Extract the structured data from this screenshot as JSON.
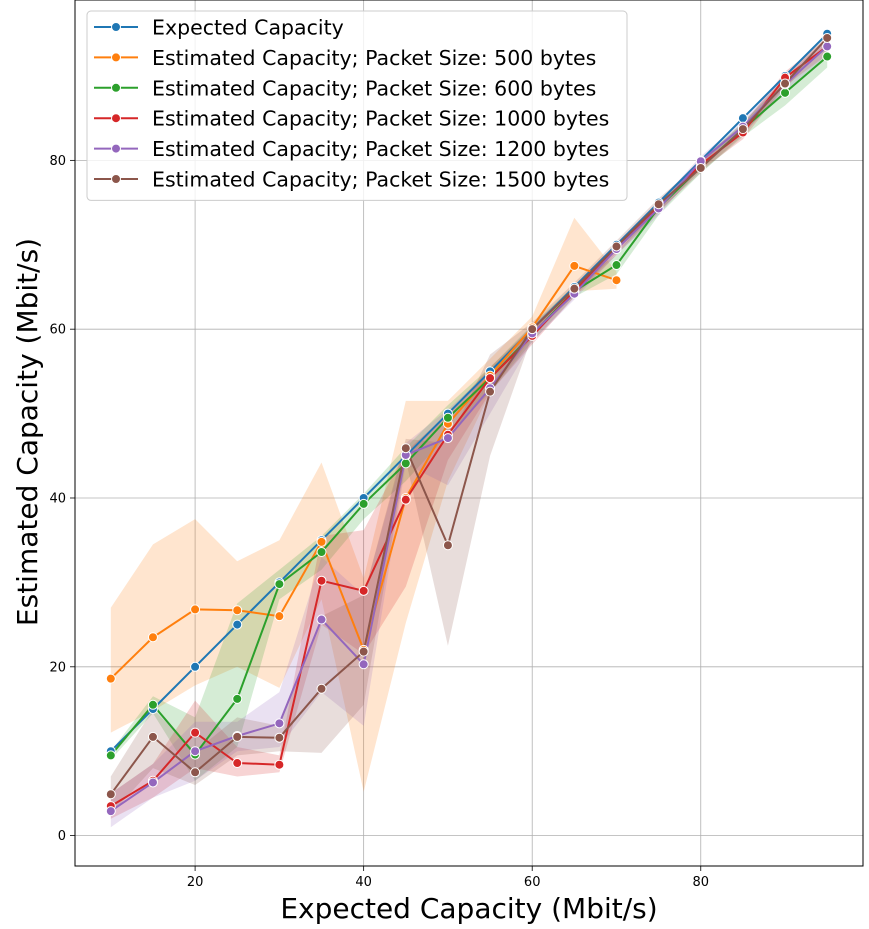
{
  "chart_data": {
    "type": "line",
    "xlabel": "Expected Capacity (Mbit/s)",
    "ylabel": "Estimated Capacity (Mbit/s)",
    "xlim": [
      5.75,
      99.25
    ],
    "ylim": [
      -3.6,
      99.0
    ],
    "xticks": [
      20,
      40,
      60,
      80
    ],
    "yticks": [
      0,
      20,
      40,
      60,
      80
    ],
    "grid": true,
    "legend_position": "upper-left",
    "series": [
      {
        "name": "Expected Capacity",
        "color": "#1f77b4",
        "x": [
          10,
          15,
          20,
          25,
          30,
          35,
          40,
          45,
          50,
          55,
          60,
          65,
          70,
          75,
          80,
          85,
          90,
          95
        ],
        "y": [
          10,
          15,
          20,
          25,
          30,
          35,
          40,
          45,
          50,
          55,
          60,
          65,
          70,
          75,
          80,
          85,
          90,
          95
        ]
      },
      {
        "name": "Estimated Capacity; Packet Size: 500 bytes",
        "color": "#ff7f0e",
        "x": [
          10,
          15,
          20,
          25,
          30,
          35,
          40,
          45,
          50,
          55,
          60,
          65,
          70
        ],
        "y": [
          18.6,
          23.5,
          26.8,
          26.7,
          26.0,
          34.8,
          22.0,
          40.0,
          48.8,
          54.5,
          60.2,
          67.5,
          65.8
        ],
        "band_low": [
          12.2,
          14.8,
          17.8,
          20.0,
          17.5,
          28.0,
          5.2,
          25.2,
          42.0,
          52.5,
          59.0,
          64.5,
          64.8
        ],
        "band_high": [
          27.0,
          34.5,
          37.5,
          32.5,
          35.0,
          44.2,
          30.5,
          51.5,
          51.5,
          56.5,
          61.5,
          73.2,
          66.8
        ]
      },
      {
        "name": "Estimated Capacity; Packet Size: 600 bytes",
        "color": "#2ca02c",
        "x": [
          10,
          15,
          20,
          25,
          30,
          35,
          40,
          45,
          50,
          55,
          60,
          65,
          70,
          75,
          80,
          85,
          90,
          95
        ],
        "y": [
          9.5,
          15.5,
          9.6,
          16.2,
          29.8,
          33.6,
          39.3,
          44.1,
          49.5,
          54.2,
          59.4,
          64.5,
          67.6,
          74.4,
          79.2,
          83.7,
          88.0,
          92.3
        ],
        "band_low": [
          9.0,
          14.5,
          6.5,
          10.5,
          28.0,
          31.5,
          37.5,
          42.0,
          47.5,
          52.5,
          58.5,
          63.8,
          66.5,
          73.5,
          78.5,
          82.8,
          86.5,
          91.0
        ],
        "band_high": [
          10.0,
          16.5,
          14.0,
          27.5,
          31.5,
          35.5,
          40.5,
          46.0,
          51.0,
          55.5,
          60.5,
          65.2,
          68.8,
          75.2,
          80.0,
          84.5,
          89.5,
          93.5
        ]
      },
      {
        "name": "Estimated Capacity; Packet Size: 1000 bytes",
        "color": "#d62728",
        "x": [
          10,
          15,
          20,
          25,
          30,
          35,
          40,
          45,
          50,
          55,
          60,
          65,
          70,
          75,
          80,
          85,
          90,
          95
        ],
        "y": [
          3.5,
          6.5,
          12.2,
          8.6,
          8.4,
          30.2,
          29.0,
          39.8,
          47.5,
          54.2,
          59.2,
          64.5,
          69.5,
          74.5,
          79.5,
          83.3,
          89.8,
          93.5
        ],
        "band_low": [
          2.0,
          4.5,
          8.0,
          7.0,
          7.5,
          25.0,
          21.5,
          29.5,
          44.5,
          52.5,
          58.2,
          63.8,
          68.8,
          73.8,
          78.8,
          82.5,
          88.8,
          92.5
        ],
        "band_high": [
          5.0,
          8.5,
          16.0,
          10.5,
          9.5,
          35.5,
          36.2,
          45.5,
          50.0,
          55.5,
          60.2,
          65.2,
          70.2,
          75.2,
          80.2,
          84.2,
          90.5,
          94.5
        ]
      },
      {
        "name": "Estimated Capacity; Packet Size: 1200 bytes",
        "color": "#9467bd",
        "x": [
          10,
          15,
          20,
          25,
          30,
          35,
          40,
          45,
          50,
          55,
          60,
          65,
          70,
          75,
          80,
          85,
          90,
          95
        ],
        "y": [
          2.9,
          6.3,
          10.0,
          11.8,
          13.3,
          25.6,
          20.3,
          45.1,
          47.1,
          53.0,
          59.5,
          64.2,
          69.5,
          74.3,
          79.9,
          84.0,
          89.0,
          93.5
        ],
        "band_low": [
          1.0,
          4.5,
          6.5,
          10.0,
          10.5,
          17.0,
          13.0,
          44.0,
          41.5,
          50.0,
          58.5,
          63.5,
          68.8,
          73.5,
          79.2,
          83.2,
          88.2,
          92.5
        ],
        "band_high": [
          5.0,
          8.5,
          13.5,
          13.5,
          17.0,
          33.0,
          28.5,
          46.5,
          50.5,
          55.0,
          60.5,
          65.0,
          70.2,
          75.0,
          80.5,
          84.8,
          89.8,
          94.5
        ]
      },
      {
        "name": "Estimated Capacity; Packet Size: 1500 bytes",
        "color": "#8c564b",
        "x": [
          10,
          15,
          20,
          25,
          30,
          35,
          40,
          45,
          50,
          55,
          60,
          65,
          70,
          75,
          80,
          85,
          90,
          95
        ],
        "y": [
          4.9,
          11.7,
          7.5,
          11.7,
          11.6,
          17.4,
          21.8,
          45.9,
          34.4,
          52.6,
          60.0,
          64.8,
          69.8,
          74.8,
          79.1,
          83.7,
          89.1,
          94.5
        ],
        "band_low": [
          2.5,
          8.0,
          6.0,
          9.5,
          10.0,
          9.8,
          15.5,
          44.5,
          22.5,
          45.0,
          59.2,
          64.0,
          69.0,
          74.0,
          78.5,
          83.0,
          88.5,
          93.8
        ],
        "band_high": [
          7.0,
          15.0,
          10.0,
          14.0,
          13.0,
          26.0,
          28.5,
          47.0,
          46.5,
          57.0,
          60.8,
          65.5,
          70.5,
          75.5,
          79.8,
          84.5,
          89.8,
          95.2
        ]
      }
    ]
  }
}
